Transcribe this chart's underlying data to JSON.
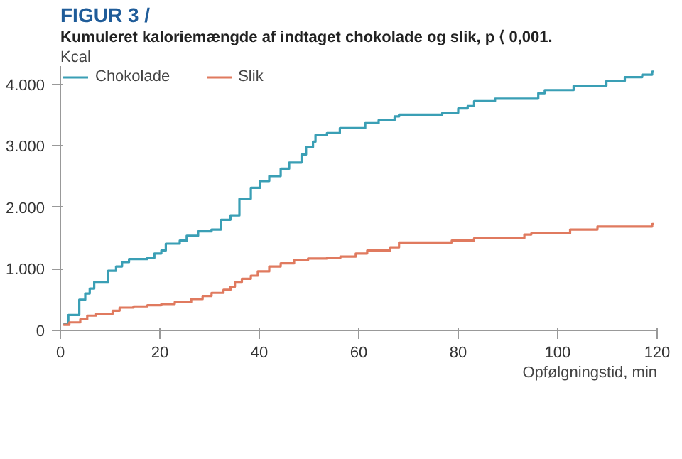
{
  "chart_data": {
    "type": "step",
    "title": "FIGUR 3 /",
    "subtitle": "Kumuleret kaloriemængde af indtaget chokolade og slik, p ⟨ 0,001.",
    "xlabel": "Opfølgningstid, min",
    "ylabel": "Kcal",
    "xlim": [
      0,
      120
    ],
    "xticks": [
      0,
      20,
      40,
      60,
      80,
      100,
      120
    ],
    "ylim": [
      0,
      4300
    ],
    "yticks": [
      0,
      {
        "value": 1000,
        "label": "1.000"
      },
      {
        "value": 2000,
        "label": "2.000"
      },
      {
        "value": 3000,
        "label": "3.000"
      },
      {
        "value": 4000,
        "label": "4.000"
      }
    ],
    "grid": false,
    "legend": "top left",
    "line_style": "solid",
    "series": [
      {
        "name": "Chokolade",
        "color": "#3a9fb5",
        "x": [
          0.6,
          1.6,
          3.8,
          5,
          5.9,
          6.8,
          9.6,
          11.2,
          12.4,
          13.8,
          17.5,
          18.9,
          20.3,
          21.2,
          24,
          25.4,
          27.7,
          30.4,
          32.3,
          34.2,
          36,
          38.3,
          40.2,
          42,
          44.3,
          46,
          48.5,
          49.4,
          50.8,
          51.3,
          53.6,
          56.2,
          61.3,
          64,
          67.2,
          68.1,
          76.8,
          80,
          81.9,
          83.2,
          87.4,
          96.1,
          97.4,
          103.2,
          109.8,
          113.5,
          117,
          119,
          119.4
        ],
        "values": [
          110,
          250,
          500,
          600,
          680,
          790,
          970,
          1040,
          1110,
          1160,
          1180,
          1250,
          1300,
          1410,
          1460,
          1540,
          1610,
          1640,
          1800,
          1870,
          2140,
          2320,
          2430,
          2510,
          2630,
          2730,
          2860,
          2980,
          3070,
          3180,
          3210,
          3290,
          3370,
          3420,
          3480,
          3510,
          3540,
          3610,
          3650,
          3730,
          3770,
          3860,
          3910,
          3980,
          4060,
          4120,
          4160,
          4210,
          4210
        ]
      },
      {
        "name": "Slik",
        "color": "#e07a5f",
        "x": [
          0.6,
          1.8,
          4,
          5.4,
          7.2,
          10.5,
          11.9,
          14.7,
          17.5,
          20.3,
          23,
          26.3,
          28.6,
          30.4,
          32.8,
          34.2,
          35.1,
          36.5,
          38.3,
          39.7,
          42,
          44.3,
          47,
          49.8,
          53.6,
          56.3,
          59.4,
          61.7,
          66.3,
          68.1,
          78.7,
          83.2,
          93.3,
          94.7,
          102.5,
          108,
          119,
          119.4
        ],
        "values": [
          90,
          130,
          180,
          240,
          270,
          320,
          370,
          390,
          410,
          430,
          460,
          510,
          560,
          610,
          660,
          710,
          790,
          840,
          890,
          960,
          1040,
          1090,
          1140,
          1170,
          1180,
          1200,
          1250,
          1300,
          1350,
          1430,
          1460,
          1500,
          1560,
          1580,
          1640,
          1690,
          1730,
          1730
        ]
      }
    ]
  }
}
